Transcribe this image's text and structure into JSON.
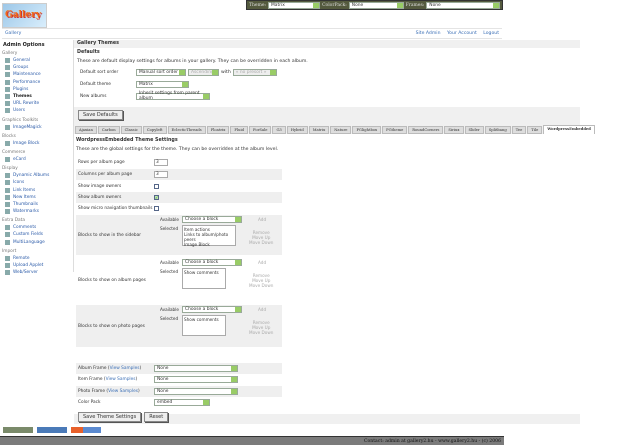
{
  "logo_text": "Gallery",
  "topbar": {
    "theme_label": "Theme:",
    "theme_value": "Matrix",
    "colorpack_label": "ColorPack:",
    "colorpack_value": "None",
    "frames_label": "Frames:",
    "frames_value": "None"
  },
  "header": {
    "breadcrumb": "Gallery",
    "links": [
      "Site Admin",
      "Your Account",
      "Logout"
    ]
  },
  "sidebar": {
    "title": "Admin Options",
    "groups": [
      {
        "label": "Gallery",
        "items": [
          "General",
          "Groups",
          "Maintenance",
          "Performance",
          "Plugins",
          "Themes",
          "URL Rewrite",
          "Users"
        ]
      },
      {
        "label": "Graphics Toolkits",
        "items": [
          "ImageMagick"
        ]
      },
      {
        "label": "Blocks",
        "items": [
          "Image Block"
        ]
      },
      {
        "label": "Commerce",
        "items": [
          "eCard"
        ]
      },
      {
        "label": "Display",
        "items": [
          "Dynamic Albums",
          "Icons",
          "Link Items",
          "New Items",
          "Thumbnails",
          "Watermarks"
        ]
      },
      {
        "label": "Extra Data",
        "items": [
          "Comments",
          "Custom Fields",
          "MultiLanguage"
        ]
      },
      {
        "label": "Import",
        "items": [
          "Remote",
          "Upload Applet",
          "Web/Server"
        ]
      }
    ],
    "current": "Themes"
  },
  "main": {
    "title": "Gallery Themes",
    "defaults": {
      "heading": "Defaults",
      "description": "These are default display settings for albums in your gallery. They can be overridden in each album.",
      "sort_label": "Default sort order",
      "sort_value": "Manual sort order",
      "direction_value": "Ascending",
      "with_label": "with",
      "presort_value": "« no presort »",
      "theme_label": "Default theme",
      "theme_value": "Matrix",
      "new_albums_label": "New albums",
      "new_albums_value": "Inherit settings from parent album",
      "save_button": "Save Defaults"
    },
    "tabs": [
      "Ajaxian",
      "Carbon",
      "Classic",
      "Copyleft",
      "EclecticThreads",
      "Floatrix",
      "Fluid",
      "ForSale",
      "G3",
      "Hybrid",
      "Matrix",
      "Nature",
      "PGlightbox",
      "PGtheme",
      "RoundCorners",
      "Siriux",
      "Slider",
      "Splitbang",
      "Tee",
      "Tile",
      "WordpressEmbedded"
    ],
    "active_tab": "WordpressEmbedded",
    "theme_settings": {
      "heading": "WordpressEmbedded Theme Settings",
      "description": "These are the global settings for the theme. They can be overridden at the album level.",
      "rows_label": "Rows per album page",
      "rows_value": "3",
      "cols_label": "Columns per album page",
      "cols_value": "3",
      "image_owners_label": "Show image owners",
      "image_owners": false,
      "album_owners_label": "Show album owners",
      "album_owners": true,
      "micro_nav_label": "Show micro navigation thumbnails",
      "micro_nav": false,
      "available_label": "Available",
      "selected_label": "Selected",
      "choose_block": "Choose a block",
      "add": "Add",
      "remove": "Remove",
      "move_up": "Move Up",
      "move_down": "Move Down",
      "sidebar_blocks_label": "Blocks to show in the sidebar",
      "sidebar_blocks": "Item actions\nLinks to album/photo peers\nImage Block",
      "album_blocks_label": "Blocks to show on album pages",
      "album_blocks": "Show comments",
      "photo_blocks_label": "Blocks to show on photo pages",
      "photo_blocks": "Show comments",
      "album_frame_label": "Album Frame",
      "item_frame_label": "Item Frame",
      "photo_frame_label": "Photo Frame",
      "view_samples": "View Samples",
      "album_frame": "None",
      "item_frame": "None",
      "photo_frame": "None",
      "colorpack_label": "Color Pack",
      "colorpack": "embed",
      "save_button": "Save Theme Settings",
      "reset_button": "Reset"
    }
  },
  "footer": "Contact: admin at gallery2.hu - www.gallery2.hu - (c) 2006"
}
